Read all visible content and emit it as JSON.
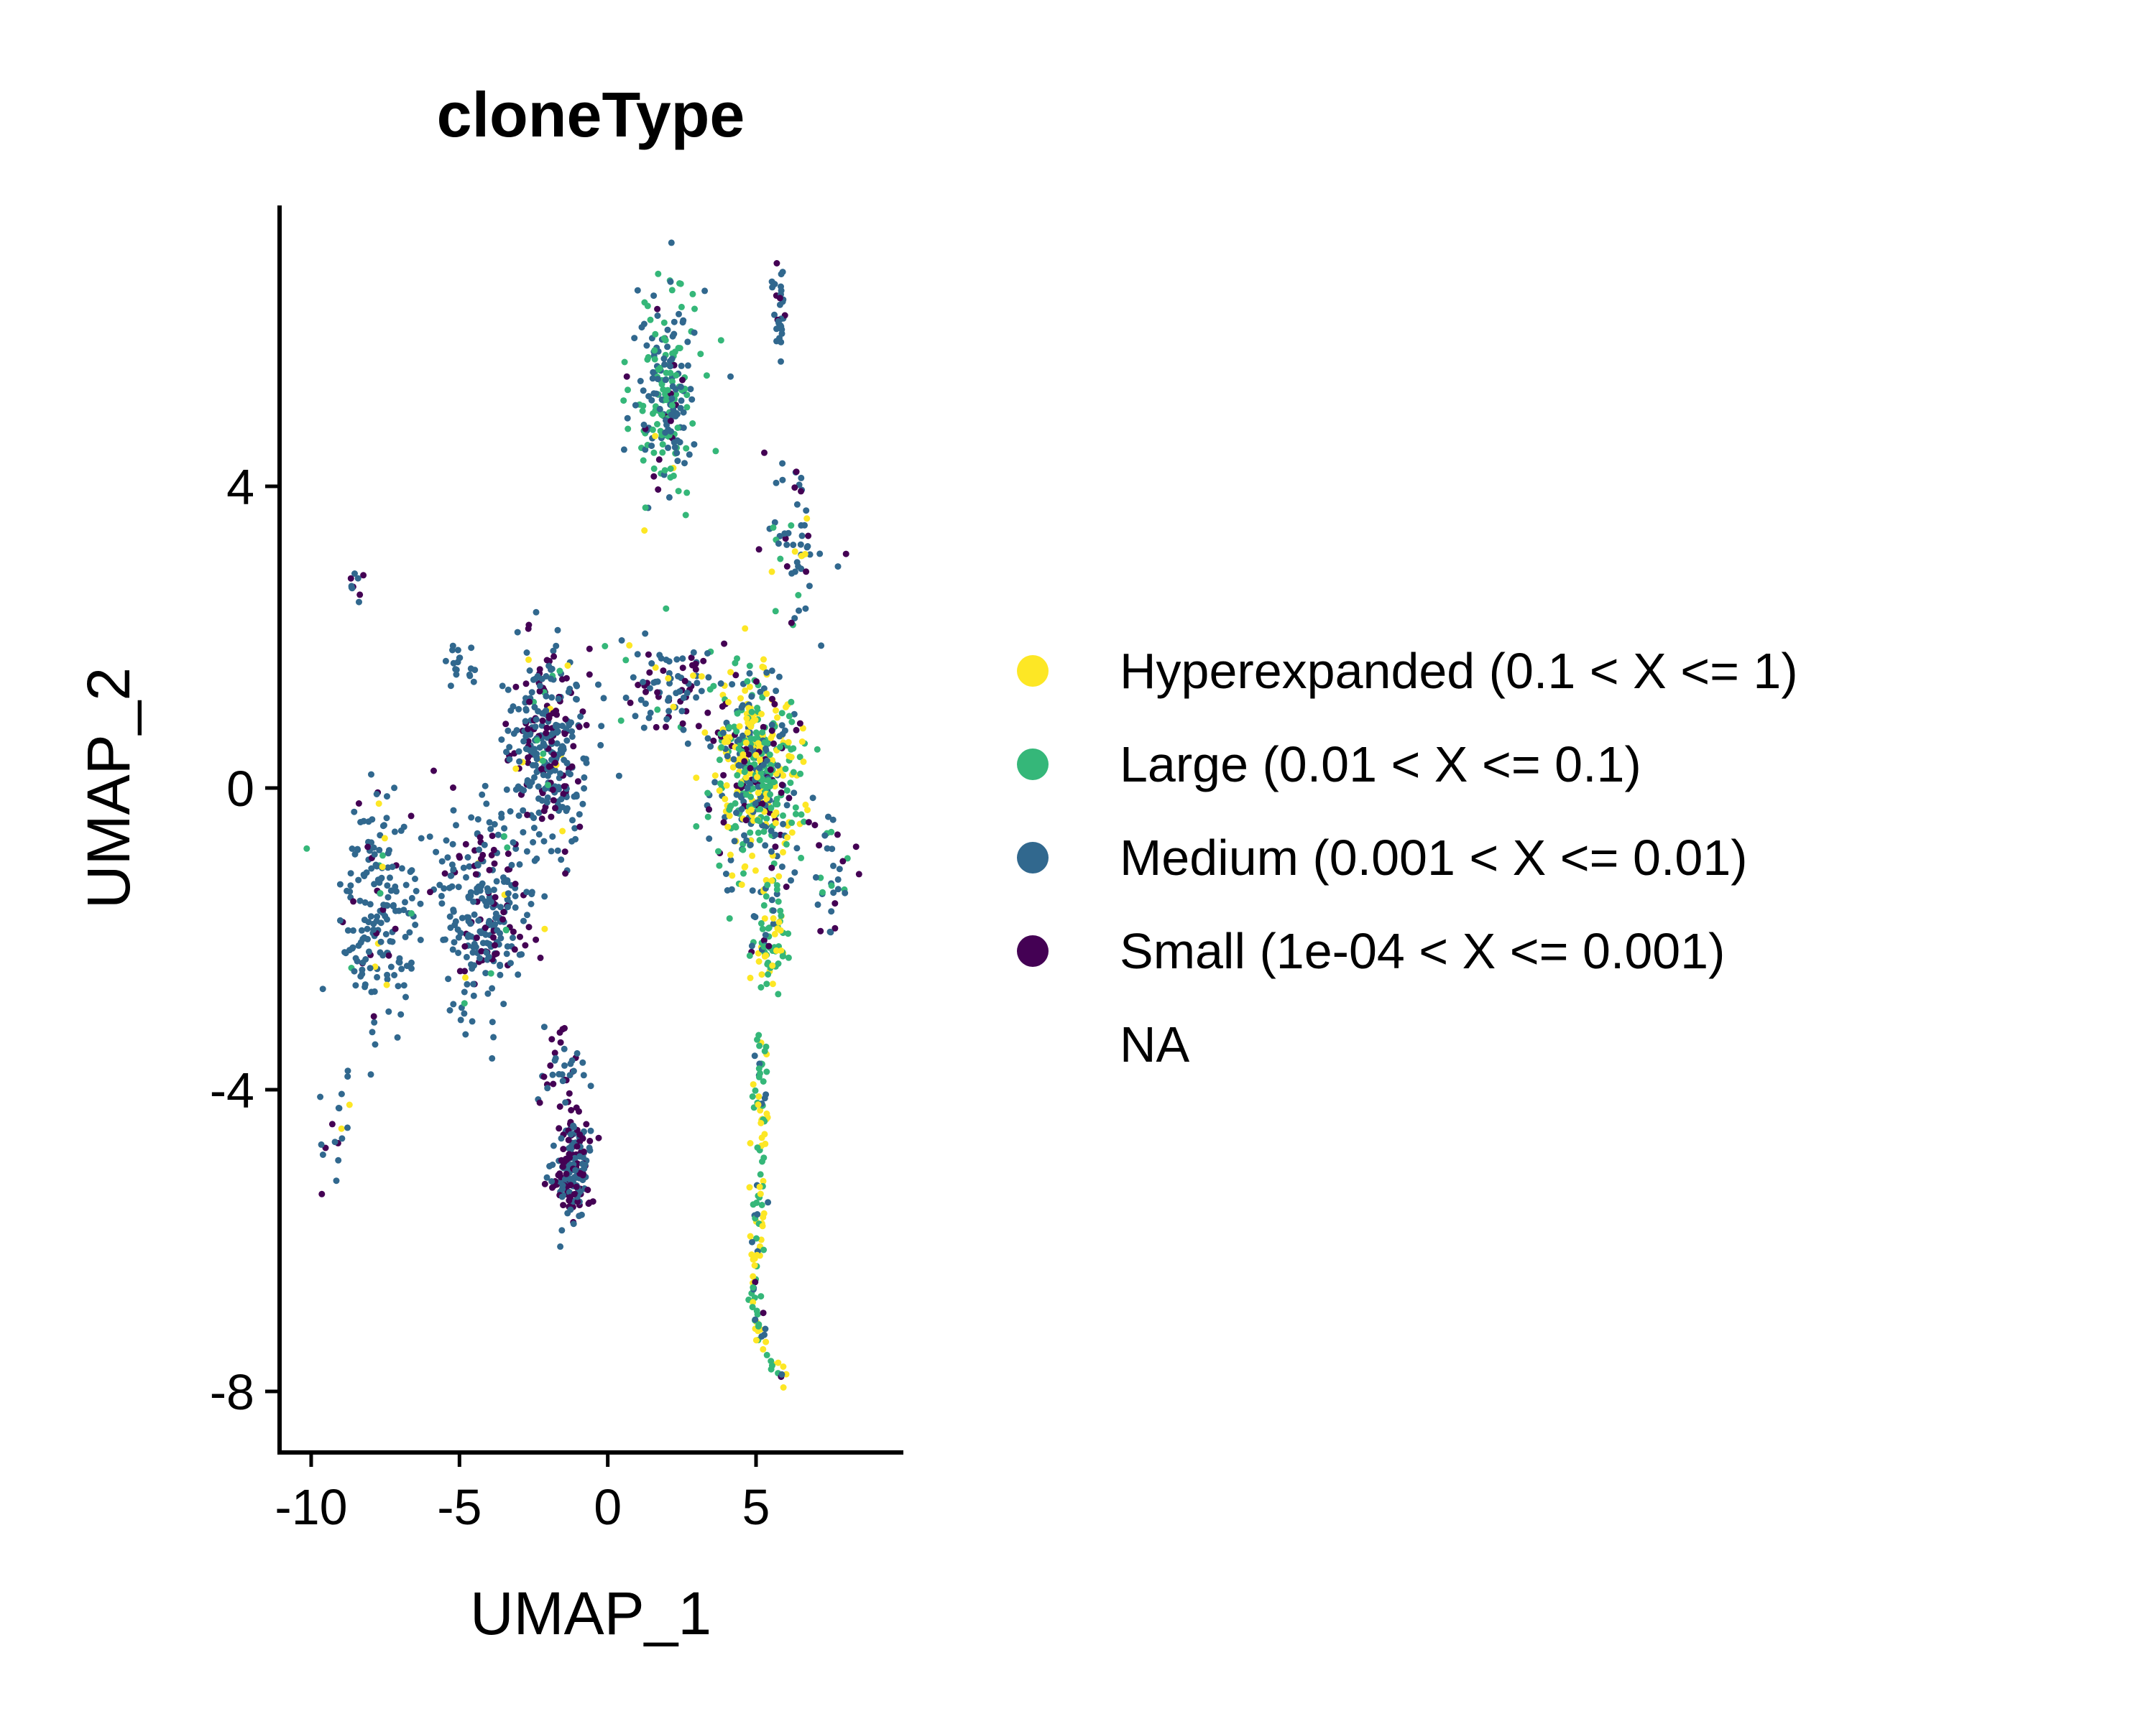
{
  "chart_data": {
    "type": "scatter",
    "title": "cloneType",
    "xlabel": "UMAP_1",
    "ylabel": "UMAP_2",
    "xlim": [
      -10.5,
      10.0
    ],
    "ylim": [
      -8.9,
      8.0
    ],
    "xticks": [
      -10,
      -5,
      0,
      5
    ],
    "xtick_labels": [
      "-10",
      "-5",
      "0",
      "5"
    ],
    "yticks": [
      -8,
      -4,
      0,
      4
    ],
    "ytick_labels": [
      "-8",
      "-4",
      "0",
      "4"
    ],
    "grid": false,
    "legend_position": "right",
    "legend": [
      {
        "label": "Hyperexpanded (0.1 < X <= 1)",
        "color": "#FDE725"
      },
      {
        "label": "Large (0.01 < X <= 0.1)",
        "color": "#35B779"
      },
      {
        "label": "Medium (0.001 < X <= 0.01)",
        "color": "#31688E"
      },
      {
        "label": "Small (1e-04 < X <= 0.001)",
        "color": "#440154"
      },
      {
        "label": "NA",
        "color": null
      }
    ],
    "clusters": [
      {
        "name": "top-green-cluster",
        "center": [
          2.0,
          5.2
        ],
        "spread": [
          1.0,
          1.2
        ],
        "count": 230,
        "mix": {
          "Hyperexpanded": 0.02,
          "Large": 0.48,
          "Medium": 0.45,
          "Small": 0.05
        }
      },
      {
        "name": "top-right-strip",
        "center": [
          5.8,
          6.3
        ],
        "spread": [
          0.2,
          0.6
        ],
        "count": 30,
        "mix": {
          "Medium": 0.8,
          "Small": 0.2
        }
      },
      {
        "name": "right-upper-arc",
        "center": [
          6.3,
          3.2
        ],
        "spread": [
          1.0,
          1.0
        ],
        "count": 60,
        "mix": {
          "Hyperexpanded": 0.05,
          "Large": 0.15,
          "Medium": 0.6,
          "Small": 0.2
        }
      },
      {
        "name": "central-right-dense",
        "center": [
          5.0,
          0.2
        ],
        "spread": [
          1.4,
          1.2
        ],
        "count": 520,
        "mix": {
          "Hyperexpanded": 0.3,
          "Large": 0.33,
          "Medium": 0.27,
          "Small": 0.1
        }
      },
      {
        "name": "upper-bridge",
        "center": [
          2.0,
          1.4
        ],
        "spread": [
          1.3,
          0.6
        ],
        "count": 90,
        "mix": {
          "Medium": 0.55,
          "Small": 0.35,
          "Large": 0.05,
          "Hyperexpanded": 0.05
        }
      },
      {
        "name": "lower-tail",
        "center": [
          5.5,
          -2.0
        ],
        "spread": [
          0.6,
          0.6
        ],
        "count": 80,
        "mix": {
          "Hyperexpanded": 0.25,
          "Large": 0.45,
          "Medium": 0.25,
          "Small": 0.05
        }
      },
      {
        "name": "right-side-spur",
        "center": [
          7.6,
          -1.2
        ],
        "spread": [
          0.6,
          0.8
        ],
        "count": 35,
        "mix": {
          "Large": 0.35,
          "Medium": 0.45,
          "Small": 0.2
        }
      },
      {
        "name": "left-arm-upper",
        "center": [
          -2.0,
          0.6
        ],
        "spread": [
          1.2,
          1.2
        ],
        "count": 330,
        "mix": {
          "Medium": 0.62,
          "Small": 0.32,
          "Hyperexpanded": 0.03,
          "Large": 0.03
        }
      },
      {
        "name": "left-arm-middle",
        "center": [
          -4.2,
          -1.6
        ],
        "spread": [
          1.4,
          1.1
        ],
        "count": 280,
        "mix": {
          "Medium": 0.72,
          "Small": 0.22,
          "Hyperexpanded": 0.03,
          "Large": 0.03
        }
      },
      {
        "name": "far-left",
        "center": [
          -7.8,
          -1.8
        ],
        "spread": [
          1.2,
          1.4
        ],
        "count": 190,
        "mix": {
          "Medium": 0.85,
          "Small": 0.08,
          "Large": 0.04,
          "Hyperexpanded": 0.03
        }
      },
      {
        "name": "bottom-left-tail",
        "center": [
          -9.3,
          -4.5
        ],
        "spread": [
          0.6,
          0.8
        ],
        "count": 18,
        "mix": {
          "Medium": 0.8,
          "Hyperexpanded": 0.1,
          "Small": 0.1
        }
      },
      {
        "name": "bottom-blob",
        "center": [
          -1.2,
          -5.1
        ],
        "spread": [
          0.6,
          0.6
        ],
        "count": 190,
        "mix": {
          "Medium": 0.55,
          "Small": 0.45
        }
      },
      {
        "name": "bottom-blob-neck",
        "center": [
          -1.6,
          -3.7
        ],
        "spread": [
          0.8,
          0.6
        ],
        "count": 40,
        "mix": {
          "Medium": 0.6,
          "Small": 0.4
        }
      },
      {
        "name": "left-small-patch",
        "center": [
          -5.0,
          1.7
        ],
        "spread": [
          0.5,
          0.3
        ],
        "count": 18,
        "mix": {
          "Medium": 1.0
        }
      },
      {
        "name": "far-left-top",
        "center": [
          -8.6,
          2.7
        ],
        "spread": [
          0.3,
          0.2
        ],
        "count": 10,
        "mix": {
          "Medium": 0.6,
          "Small": 0.4
        }
      }
    ],
    "curved_stream": {
      "name": "vertical-stream",
      "path": [
        [
          5.1,
          -3.3
        ],
        [
          5.2,
          -4.4
        ],
        [
          5.1,
          -5.6
        ],
        [
          4.9,
          -6.6
        ],
        [
          5.1,
          -7.3
        ],
        [
          6.0,
          -8.0
        ]
      ],
      "count": 130,
      "mix": {
        "Hyperexpanded": 0.38,
        "Large": 0.4,
        "Medium": 0.2,
        "Small": 0.02
      }
    }
  }
}
